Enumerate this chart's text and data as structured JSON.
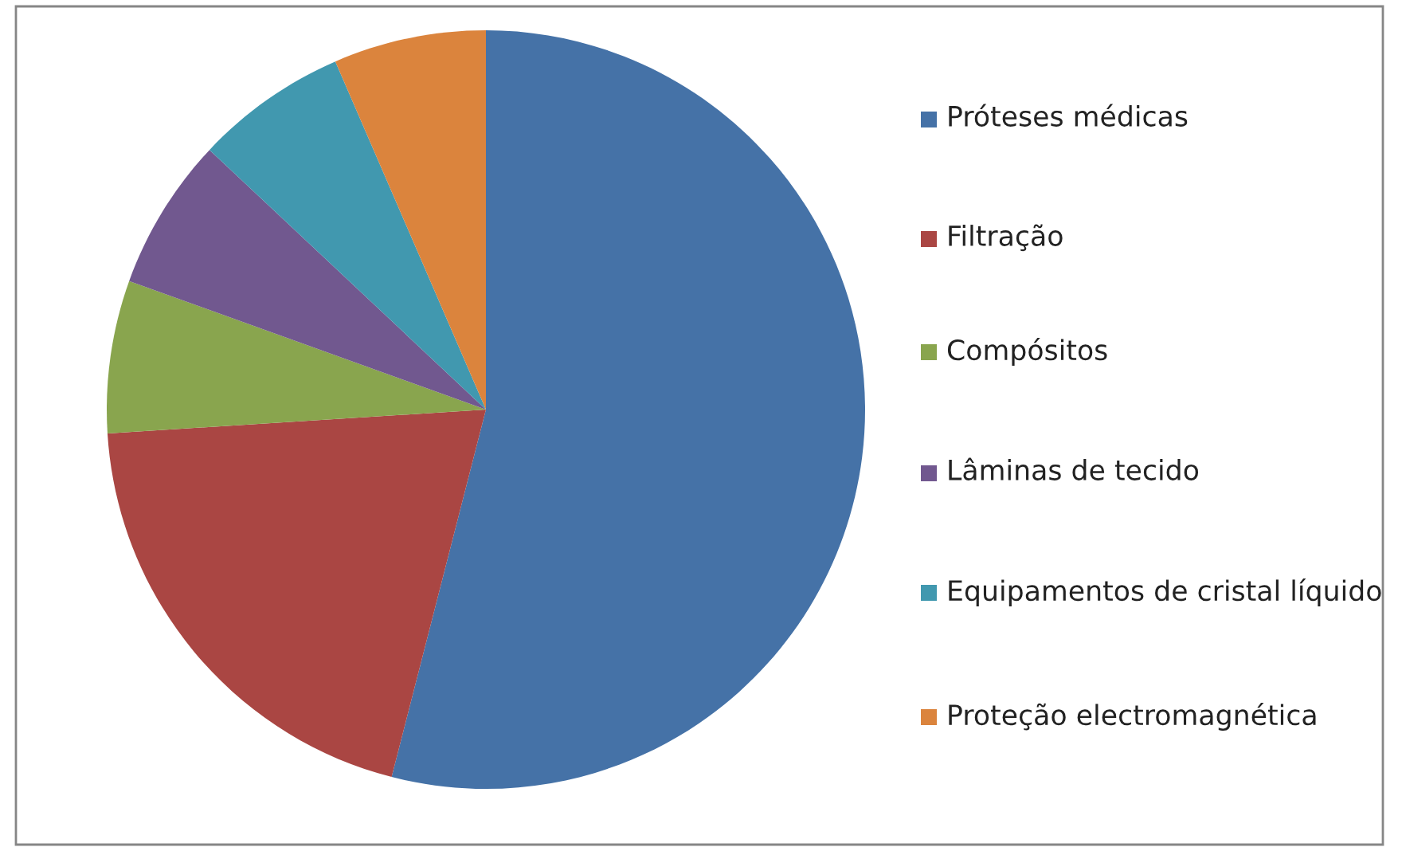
{
  "chart_data": {
    "type": "pie",
    "categories": [
      "Próteses médicas",
      "Filtração",
      "Compósitos",
      "Lâminas de tecido",
      "Equipamentos de cristal líquido",
      "Proteção electromagnética"
    ],
    "values": [
      54,
      20,
      6.5,
      6.5,
      6.5,
      6.5
    ],
    "colors": [
      "#4572a7",
      "#aa4643",
      "#89a54e",
      "#71588f",
      "#4198af",
      "#db843d"
    ],
    "legend": "right"
  }
}
